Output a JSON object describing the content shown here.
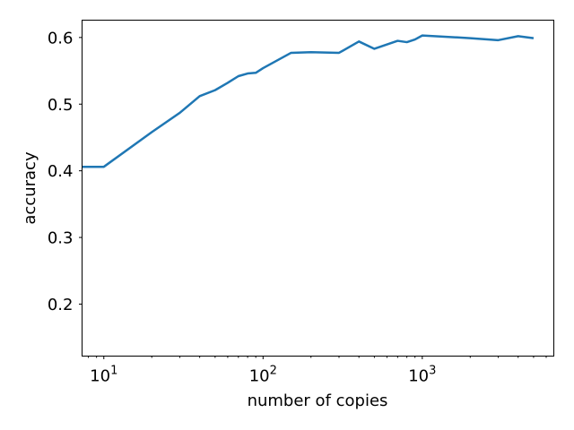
{
  "chart_data": {
    "type": "line",
    "title": "",
    "xlabel": "number of copies",
    "ylabel": "accuracy",
    "xscale": "log",
    "xlim": [
      7.3,
      6700
    ],
    "ylim": [
      0.122,
      0.626
    ],
    "grid": false,
    "legend": "none",
    "x_ticks": [
      {
        "value": 10,
        "base": "10",
        "exp": "1"
      },
      {
        "value": 100,
        "base": "10",
        "exp": "2"
      },
      {
        "value": 1000,
        "base": "10",
        "exp": "3"
      }
    ],
    "y_ticks": [
      {
        "value": 0.2,
        "label": "0.2"
      },
      {
        "value": 0.3,
        "label": "0.3"
      },
      {
        "value": 0.4,
        "label": "0.4"
      },
      {
        "value": 0.5,
        "label": "0.5"
      },
      {
        "value": 0.6,
        "label": "0.6"
      }
    ],
    "series": [
      {
        "color": "#1f77b4",
        "x": [
          1,
          10,
          20,
          30,
          40,
          50,
          60,
          70,
          80,
          90,
          100,
          150,
          200,
          300,
          400,
          500,
          700,
          800,
          900,
          1000,
          2000,
          3000,
          4000,
          5000
        ],
        "y": [
          0.406,
          0.406,
          0.458,
          0.487,
          0.512,
          0.521,
          0.532,
          0.542,
          0.546,
          0.547,
          0.554,
          0.577,
          0.578,
          0.577,
          0.594,
          0.583,
          0.595,
          0.593,
          0.597,
          0.603,
          0.599,
          0.596,
          0.602,
          0.599
        ]
      }
    ]
  }
}
